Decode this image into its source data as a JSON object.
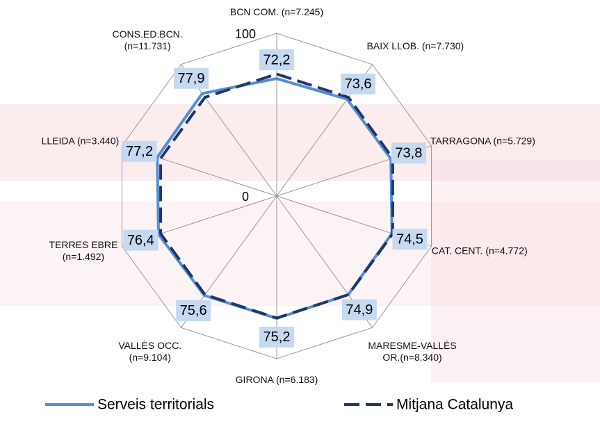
{
  "chart_data": {
    "type": "radar",
    "categories": [
      "BCN COM. (n=7.245)",
      "BAIX LLOB. (n=7.730)",
      "TARRAGONA (n=5.729)",
      "CAT. CENT. (n=4.772)",
      "MARESME-VALLÈS\nOR.(n=8.340)",
      "GIRONA (n=6.183)",
      "VALLÈS OCC.\n(n=9.104)",
      "TERRES EBRE\n(n=1.492)",
      "LLEIDA (n=3.440)",
      "CONS.ED.BCN.\n(n=11.731)"
    ],
    "series": [
      {
        "name": "Serveis territorials",
        "color": "#558ed5",
        "style": "solid",
        "values": [
          72.2,
          73.6,
          73.8,
          74.5,
          74.9,
          75.2,
          75.6,
          76.4,
          77.2,
          77.9
        ],
        "value_labels": [
          "72,2",
          "73,6",
          "73,8",
          "74,5",
          "74,9",
          "75,2",
          "75,6",
          "76,4",
          "77,2",
          "77,9"
        ]
      },
      {
        "name": "Mitjana Catalunya",
        "color": "#1f3864",
        "style": "dashed",
        "values": [
          75,
          75,
          75,
          75,
          75,
          75,
          75,
          75,
          75,
          75
        ]
      }
    ],
    "ylim": [
      0,
      100
    ],
    "yticks": [
      0,
      100
    ],
    "legend": "bottom"
  }
}
